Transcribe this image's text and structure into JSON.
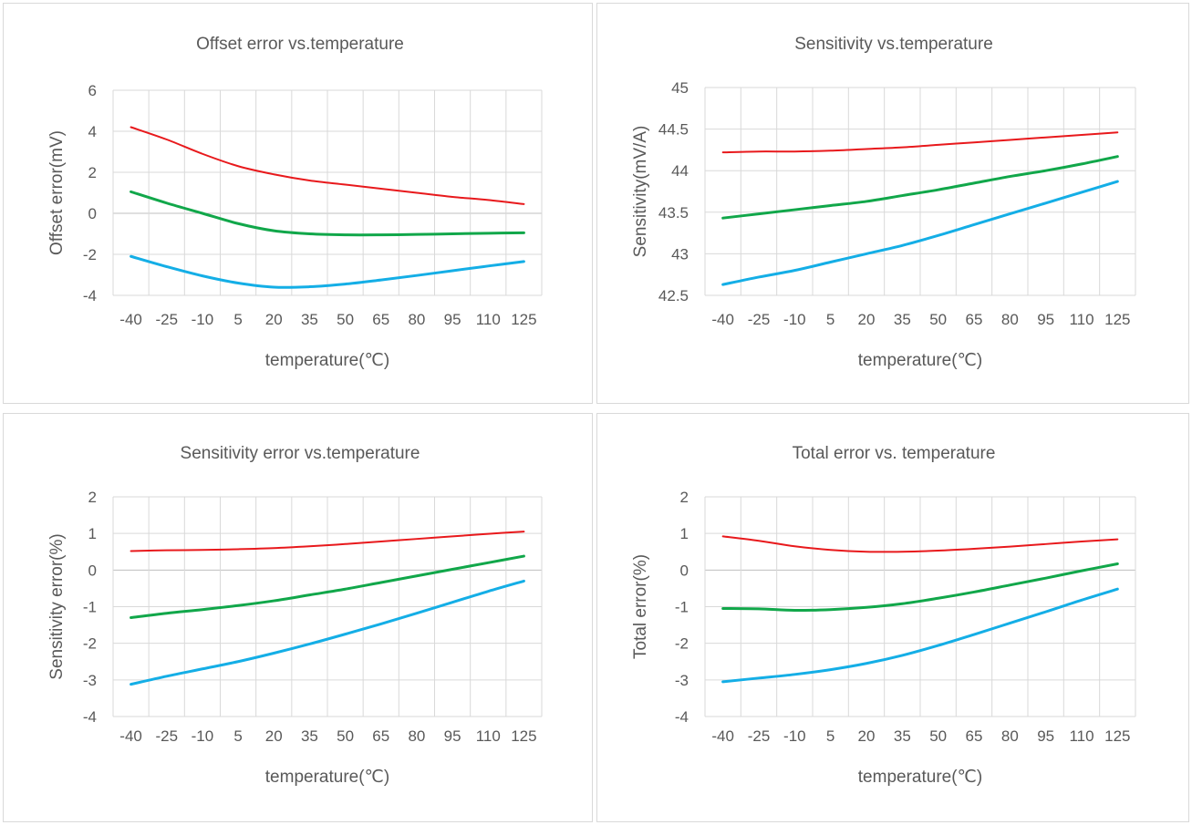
{
  "chart_data": [
    {
      "type": "line",
      "title": "Offset error vs.temperature",
      "xlabel": "temperature(℃)",
      "ylabel": "Offset error(mV)",
      "categories": [
        "-40",
        "-25",
        "-10",
        "5",
        "20",
        "35",
        "50",
        "65",
        "80",
        "95",
        "110",
        "125"
      ],
      "ylim": [
        -4,
        6
      ],
      "yticks": [
        "-4",
        "-2",
        "0",
        "2",
        "4",
        "6"
      ],
      "grid": true,
      "legend": "none",
      "series": [
        {
          "color": "#e8191c",
          "values": [
            4.2,
            3.6,
            2.9,
            2.3,
            1.9,
            1.6,
            1.4,
            1.2,
            1.0,
            0.8,
            0.65,
            0.45
          ]
        },
        {
          "color": "#11a74a",
          "values": [
            1.05,
            0.5,
            0.0,
            -0.5,
            -0.85,
            -1.0,
            -1.05,
            -1.05,
            -1.03,
            -1.0,
            -0.97,
            -0.95
          ]
        },
        {
          "color": "#14aee6",
          "values": [
            -2.1,
            -2.6,
            -3.05,
            -3.4,
            -3.6,
            -3.58,
            -3.45,
            -3.25,
            -3.03,
            -2.8,
            -2.57,
            -2.35
          ]
        }
      ]
    },
    {
      "type": "line",
      "title": "Sensitivity vs.temperature",
      "xlabel": "temperature(℃)",
      "ylabel": "Sensitivity(mV/A)",
      "categories": [
        "-40",
        "-25",
        "-10",
        "5",
        "20",
        "35",
        "50",
        "65",
        "80",
        "95",
        "110",
        "125"
      ],
      "ylim": [
        42.5,
        45
      ],
      "yticks": [
        "42.5",
        "43",
        "43.5",
        "44",
        "44.5",
        "45"
      ],
      "grid": true,
      "legend": "none",
      "series": [
        {
          "color": "#e8191c",
          "values": [
            44.22,
            44.23,
            44.23,
            44.24,
            44.26,
            44.28,
            44.31,
            44.34,
            44.37,
            44.4,
            44.43,
            44.46
          ]
        },
        {
          "color": "#11a74a",
          "values": [
            43.43,
            43.48,
            43.53,
            43.58,
            43.63,
            43.7,
            43.77,
            43.85,
            43.93,
            44.0,
            44.08,
            44.17
          ]
        },
        {
          "color": "#14aee6",
          "values": [
            42.63,
            42.72,
            42.8,
            42.9,
            43.0,
            43.1,
            43.22,
            43.35,
            43.48,
            43.61,
            43.74,
            43.87
          ]
        }
      ]
    },
    {
      "type": "line",
      "title": "Sensitivity error vs.temperature",
      "xlabel": "temperature(℃)",
      "ylabel": "Sensitivity error(%)",
      "categories": [
        "-40",
        "-25",
        "-10",
        "5",
        "20",
        "35",
        "50",
        "65",
        "80",
        "95",
        "110",
        "125"
      ],
      "ylim": [
        -4,
        2
      ],
      "yticks": [
        "-4",
        "-3",
        "-2",
        "-1",
        "0",
        "1",
        "2"
      ],
      "grid": true,
      "legend": "none",
      "series": [
        {
          "color": "#e8191c",
          "values": [
            0.52,
            0.54,
            0.55,
            0.57,
            0.6,
            0.65,
            0.71,
            0.78,
            0.85,
            0.92,
            0.99,
            1.05
          ]
        },
        {
          "color": "#11a74a",
          "values": [
            -1.3,
            -1.18,
            -1.08,
            -0.97,
            -0.84,
            -0.68,
            -0.52,
            -0.34,
            -0.16,
            0.02,
            0.2,
            0.38
          ]
        },
        {
          "color": "#14aee6",
          "values": [
            -3.12,
            -2.9,
            -2.7,
            -2.5,
            -2.27,
            -2.02,
            -1.75,
            -1.47,
            -1.18,
            -0.88,
            -0.58,
            -0.3
          ]
        }
      ]
    },
    {
      "type": "line",
      "title": "Total error vs. temperature",
      "xlabel": "temperature(℃)",
      "ylabel": "Total error(%)",
      "categories": [
        "-40",
        "-25",
        "-10",
        "5",
        "20",
        "35",
        "50",
        "65",
        "80",
        "95",
        "110",
        "125"
      ],
      "ylim": [
        -4,
        2
      ],
      "yticks": [
        "-4",
        "-3",
        "-2",
        "-1",
        "0",
        "1",
        "2"
      ],
      "grid": true,
      "legend": "none",
      "series": [
        {
          "color": "#e8191c",
          "values": [
            0.92,
            0.8,
            0.65,
            0.55,
            0.5,
            0.5,
            0.53,
            0.58,
            0.64,
            0.71,
            0.78,
            0.84
          ]
        },
        {
          "color": "#11a74a",
          "values": [
            -1.05,
            -1.06,
            -1.1,
            -1.08,
            -1.02,
            -0.92,
            -0.77,
            -0.6,
            -0.41,
            -0.22,
            -0.02,
            0.17
          ]
        },
        {
          "color": "#14aee6",
          "values": [
            -3.05,
            -2.95,
            -2.85,
            -2.72,
            -2.55,
            -2.33,
            -2.06,
            -1.76,
            -1.45,
            -1.14,
            -0.82,
            -0.52
          ]
        }
      ]
    }
  ]
}
